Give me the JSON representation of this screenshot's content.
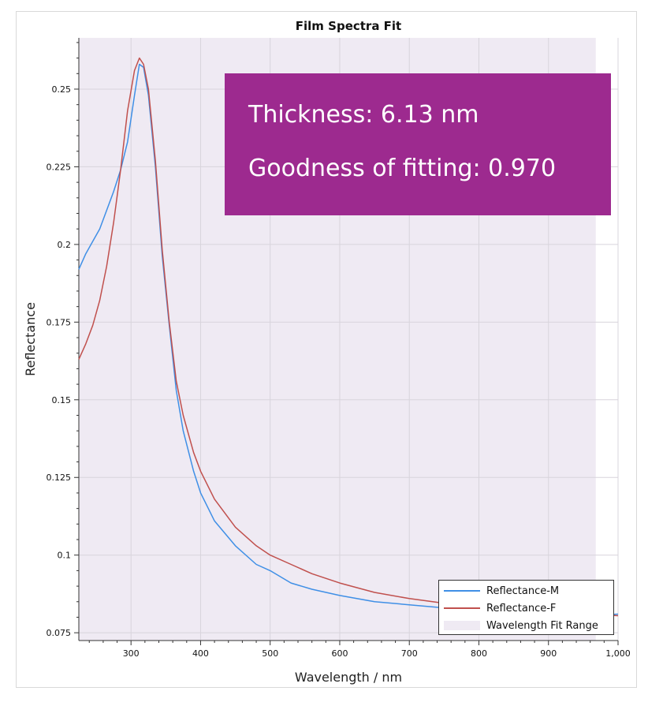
{
  "chart_data": {
    "type": "line",
    "title": "Film Spectra Fit",
    "xlabel": "Wavelength / nm",
    "ylabel": "Reflectance",
    "xlim": [
      225,
      1000
    ],
    "ylim": [
      0.0725,
      0.2665
    ],
    "x_ticks": [
      300,
      400,
      500,
      600,
      700,
      800,
      900,
      1000
    ],
    "x_tick_labels": [
      "300",
      "400",
      "500",
      "600",
      "700",
      "800",
      "900",
      "1,000"
    ],
    "y_ticks": [
      0.075,
      0.1,
      0.125,
      0.15,
      0.175,
      0.2,
      0.225,
      0.25
    ],
    "y_tick_labels": [
      "0.075",
      "0.1",
      "0.125",
      "0.15",
      "0.175",
      "0.2",
      "0.225",
      "0.25"
    ],
    "grid": true,
    "legend_position": "bottom-right",
    "wavelength_fit_range": [
      225,
      968
    ],
    "series": [
      {
        "name": "Reflectance-M",
        "color": "#3f8fe6",
        "x": [
          225,
          235,
          245,
          255,
          265,
          275,
          285,
          295,
          305,
          312,
          318,
          325,
          335,
          345,
          355,
          365,
          375,
          390,
          400,
          420,
          450,
          480,
          500,
          530,
          560,
          600,
          650,
          700,
          750,
          800,
          850,
          900,
          950,
          1000
        ],
        "y": [
          0.192,
          0.197,
          0.201,
          0.205,
          0.211,
          0.217,
          0.224,
          0.233,
          0.248,
          0.258,
          0.257,
          0.248,
          0.225,
          0.196,
          0.174,
          0.153,
          0.14,
          0.127,
          0.12,
          0.111,
          0.103,
          0.097,
          0.095,
          0.091,
          0.089,
          0.087,
          0.085,
          0.084,
          0.083,
          0.082,
          0.081,
          0.0805,
          0.0805,
          0.081
        ]
      },
      {
        "name": "Reflectance-F",
        "color": "#c0504d",
        "x": [
          225,
          235,
          245,
          255,
          265,
          275,
          285,
          295,
          305,
          312,
          318,
          325,
          335,
          345,
          355,
          365,
          375,
          390,
          400,
          420,
          450,
          480,
          500,
          530,
          560,
          600,
          650,
          700,
          750,
          800,
          850,
          900,
          950,
          1000
        ],
        "y": [
          0.163,
          0.168,
          0.174,
          0.182,
          0.193,
          0.207,
          0.224,
          0.243,
          0.256,
          0.26,
          0.258,
          0.25,
          0.227,
          0.198,
          0.175,
          0.156,
          0.145,
          0.133,
          0.127,
          0.118,
          0.109,
          0.103,
          0.1,
          0.097,
          0.094,
          0.091,
          0.088,
          0.086,
          0.0845,
          0.083,
          0.0822,
          0.0815,
          0.081,
          0.0805
        ]
      }
    ],
    "legend": [
      "Reflectance-M",
      "Reflectance-F",
      "Wavelength Fit Range"
    ],
    "fit_range_color": "#efeaf3",
    "annotation": {
      "thickness": "Thickness: 6.13 nm",
      "goodness": "Goodness of fitting: 0.970",
      "background_color": "#9d2a8f"
    }
  }
}
